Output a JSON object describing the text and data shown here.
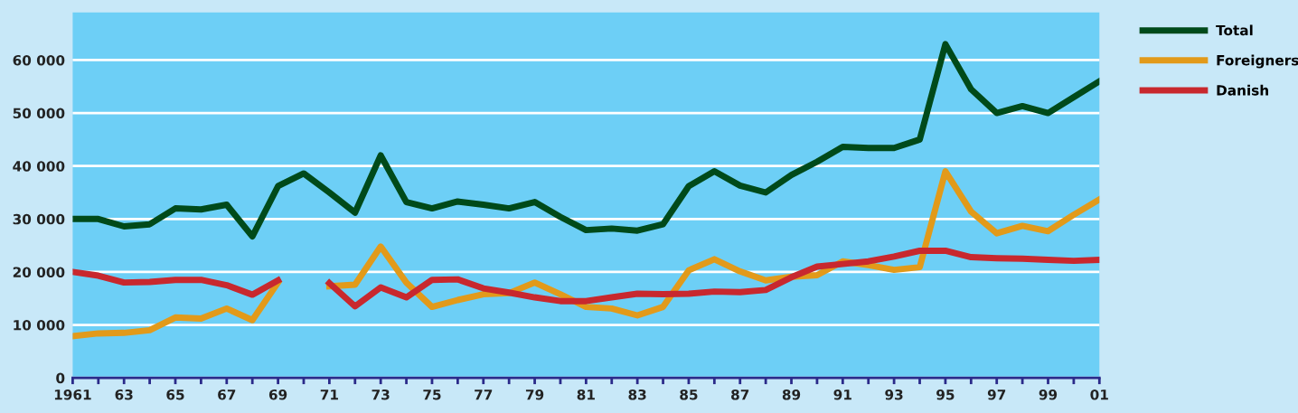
{
  "chart_data": {
    "type": "line",
    "x": [
      1961,
      1962,
      1963,
      1964,
      1965,
      1966,
      1967,
      1968,
      1969,
      1970,
      1971,
      1972,
      1973,
      1974,
      1975,
      1976,
      1977,
      1978,
      1979,
      1980,
      1981,
      1982,
      1983,
      1984,
      1985,
      1986,
      1987,
      1988,
      1989,
      1990,
      1991,
      1992,
      1993,
      1994,
      1995,
      1996,
      1997,
      1998,
      1999,
      2000,
      2001
    ],
    "series": [
      {
        "name": "Total",
        "color": "#004a1a",
        "values": [
          30000,
          30000,
          28600,
          29000,
          32000,
          31800,
          32700,
          26700,
          36200,
          38600,
          35000,
          31200,
          42000,
          33200,
          32000,
          33300,
          32700,
          32000,
          33200,
          30400,
          27900,
          28200,
          27800,
          29000,
          36200,
          39000,
          36300,
          35000,
          38300,
          40800,
          43600,
          43400,
          43400,
          45000,
          63000,
          54500,
          50000,
          51300,
          50000,
          53000,
          56000
        ]
      },
      {
        "name": "Foreigners",
        "color": "#e29a1a",
        "values": [
          7900,
          8400,
          8500,
          9000,
          11400,
          11200,
          13100,
          10900,
          18000,
          null,
          17300,
          17600,
          24800,
          18000,
          13400,
          14700,
          15800,
          16000,
          18000,
          15800,
          13400,
          13100,
          11800,
          13400,
          20300,
          22400,
          20100,
          18400,
          19100,
          19400,
          22000,
          21300,
          20400,
          20900,
          39000,
          31400,
          27300,
          28700,
          27700,
          30800,
          33700
        ]
      },
      {
        "name": "Danish",
        "color": "#c8282e",
        "values": [
          20000,
          19300,
          18000,
          18100,
          18500,
          18500,
          17500,
          15700,
          18400,
          null,
          17900,
          13500,
          17100,
          15200,
          18500,
          18600,
          16900,
          16100,
          15200,
          14500,
          14500,
          15200,
          15900,
          15800,
          15900,
          16300,
          16200,
          16600,
          19000,
          21000,
          21500,
          22000,
          22900,
          24000,
          24000,
          22800,
          22600,
          22500,
          22300,
          22100,
          22300
        ]
      }
    ],
    "xlim": [
      1961,
      2001
    ],
    "xticks": [
      {
        "value": 1961,
        "label": "1961"
      },
      {
        "value": 1962,
        "label": null
      },
      {
        "value": 1963,
        "label": "63"
      },
      {
        "value": 1964,
        "label": null
      },
      {
        "value": 1965,
        "label": "65"
      },
      {
        "value": 1966,
        "label": null
      },
      {
        "value": 1967,
        "label": "67"
      },
      {
        "value": 1968,
        "label": null
      },
      {
        "value": 1969,
        "label": "69"
      },
      {
        "value": 1970,
        "label": null
      },
      {
        "value": 1971,
        "label": "71"
      },
      {
        "value": 1972,
        "label": null
      },
      {
        "value": 1973,
        "label": "73"
      },
      {
        "value": 1974,
        "label": null
      },
      {
        "value": 1975,
        "label": "75"
      },
      {
        "value": 1976,
        "label": null
      },
      {
        "value": 1977,
        "label": "77"
      },
      {
        "value": 1978,
        "label": null
      },
      {
        "value": 1979,
        "label": "79"
      },
      {
        "value": 1980,
        "label": null
      },
      {
        "value": 1981,
        "label": "81"
      },
      {
        "value": 1982,
        "label": null
      },
      {
        "value": 1983,
        "label": "83"
      },
      {
        "value": 1984,
        "label": null
      },
      {
        "value": 1985,
        "label": "85"
      },
      {
        "value": 1986,
        "label": null
      },
      {
        "value": 1987,
        "label": "87"
      },
      {
        "value": 1988,
        "label": null
      },
      {
        "value": 1989,
        "label": "89"
      },
      {
        "value": 1990,
        "label": null
      },
      {
        "value": 1991,
        "label": "91"
      },
      {
        "value": 1992,
        "label": null
      },
      {
        "value": 1993,
        "label": "93"
      },
      {
        "value": 1994,
        "label": null
      },
      {
        "value": 1995,
        "label": "95"
      },
      {
        "value": 1996,
        "label": null
      },
      {
        "value": 1997,
        "label": "97"
      },
      {
        "value": 1998,
        "label": null
      },
      {
        "value": 1999,
        "label": "99"
      },
      {
        "value": 2000,
        "label": null
      },
      {
        "value": 2001,
        "label": "01"
      }
    ],
    "ylim": [
      0,
      69000
    ],
    "yticks": [
      0,
      {
        "value": 10000,
        "label": "10 000"
      },
      {
        "value": 20000,
        "label": "20 000"
      },
      {
        "value": 30000,
        "label": "30 000"
      },
      {
        "value": 40000,
        "label": "40 000"
      },
      {
        "value": 50000,
        "label": "50 000"
      },
      {
        "value": 60000,
        "label": "60 000"
      }
    ],
    "grid": "y",
    "legend": "top right",
    "line_style": "solid",
    "marker": "none"
  }
}
